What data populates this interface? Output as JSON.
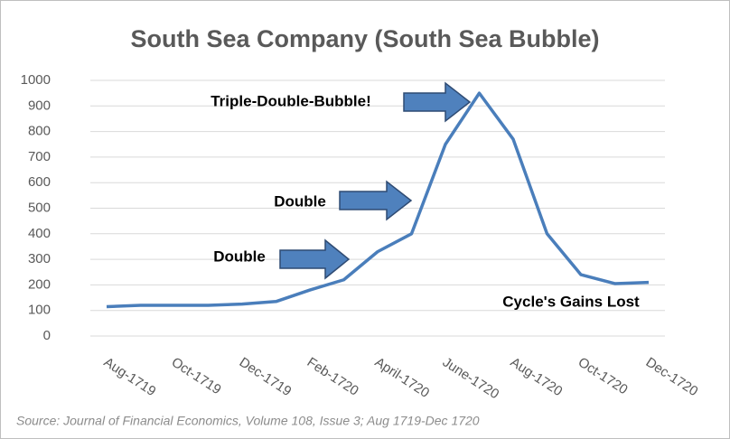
{
  "chart_data": {
    "type": "line",
    "title": "South Sea Company (South Sea Bubble)",
    "categories": [
      "Aug-1719",
      null,
      "Oct-1719",
      null,
      "Dec-1719",
      null,
      "Feb-1720",
      null,
      "April-1720",
      null,
      "June-1720",
      null,
      "Aug-1720",
      null,
      "Oct-1720",
      null,
      "Dec-1720"
    ],
    "series": [
      {
        "name": "South Sea Company",
        "color": "#4a7ebb",
        "values": [
          115,
          120,
          120,
          120,
          125,
          135,
          180,
          220,
          330,
          400,
          750,
          950,
          770,
          400,
          240,
          205,
          210
        ]
      }
    ],
    "ylim": [
      0,
      1000
    ],
    "yticks": [
      0,
      100,
      200,
      300,
      400,
      500,
      600,
      700,
      800,
      900,
      1000
    ],
    "grid": true,
    "annotations": [
      "Triple-Double-Bubble!",
      "Double",
      "Double",
      "Cycle's Gains Lost"
    ],
    "source": "Source: Journal of Financial Economics, Volume 108, Issue 3; Aug 1719-Dec 1720"
  }
}
